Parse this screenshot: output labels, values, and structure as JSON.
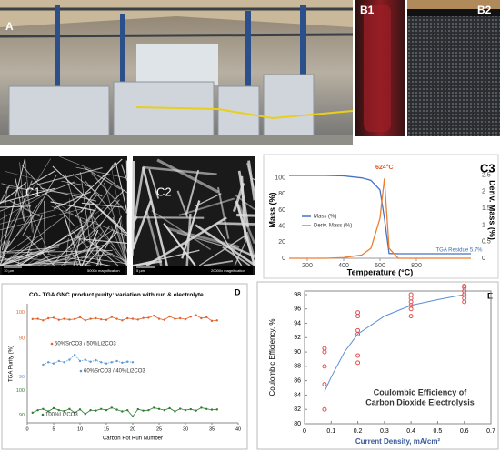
{
  "figure": {
    "labels": {
      "a": "A",
      "b1": "B1",
      "b2": "B2",
      "c1": "C1",
      "c2": "C2",
      "c1_scale": "10 µm",
      "c1_mag": "5000x magnification",
      "c2_scale": "5 µm",
      "c2_mag": "20000x magnification"
    }
  },
  "chart_data": [
    {
      "type": "line",
      "label": "C3",
      "xlabel": "Temperature (°C)",
      "ylabel": "Mass (%)",
      "y2label": "Deriv. Mass (%)",
      "annotations": [
        "624°C",
        "TGA Residue 5.7%"
      ],
      "x": [
        100,
        200,
        300,
        400,
        500,
        550,
        600,
        624,
        650,
        700,
        800,
        900,
        1000,
        1100
      ],
      "xlim": [
        100,
        1100
      ],
      "xticks": [
        200,
        400,
        600,
        800
      ],
      "ylim": [
        0,
        120
      ],
      "yticks": [
        0,
        20,
        40,
        60,
        80,
        100
      ],
      "y2lim": [
        0,
        2.9
      ],
      "y2ticks": [
        0,
        0.5,
        1,
        1.5,
        2,
        2.5
      ],
      "series": [
        {
          "name": "Mass (%)",
          "color": "#4472c4",
          "values": [
            103,
            103,
            103,
            102.5,
            100,
            97,
            85,
            50,
            6,
            5.7,
            5.7,
            5.7,
            5.7,
            5.7
          ]
        },
        {
          "name": "Deriv. Mass (%)",
          "color": "#ed7d31",
          "axis": "y2",
          "values": [
            0,
            0,
            0,
            0.02,
            0.1,
            0.3,
            1.2,
            2.4,
            0.3,
            0,
            0,
            0,
            0,
            0
          ]
        }
      ],
      "legend": "left"
    },
    {
      "type": "line",
      "label": "D",
      "title": "CO₂ TGA GNC product purity: variation with run & electrolyte",
      "xlabel": "Carbon Pot Run Number",
      "ylabel": "TGA Purity (%)",
      "xlim": [
        0,
        40
      ],
      "xticks": [
        0,
        5,
        10,
        15,
        20,
        25,
        30,
        35,
        40
      ],
      "series": [
        {
          "name": "50%SrCO3 / 50%Li2CO3",
          "color": "#e0622a",
          "ylim": [
            88,
            102
          ],
          "yticks": [
            100,
            90
          ],
          "x": [
            1,
            2,
            3,
            4,
            5,
            6,
            7,
            8,
            9,
            10,
            11,
            12,
            13,
            14,
            15,
            16,
            17,
            18,
            19,
            20,
            21,
            22,
            23,
            24,
            25,
            26,
            27,
            28,
            29,
            30,
            31,
            32,
            33,
            34,
            35,
            36
          ],
          "values": [
            97.5,
            97.6,
            97,
            97.8,
            98,
            97.2,
            97.6,
            97.3,
            97.5,
            98.2,
            97,
            97.6,
            97.8,
            97.4,
            97.2,
            98.3,
            97.6,
            97,
            97.8,
            97.6,
            97.3,
            97.9,
            98,
            98.8,
            97.6,
            97.2,
            98.5,
            97.6,
            97.8,
            97.4,
            98.4,
            99,
            97.8,
            98.2,
            96.8,
            97
          ]
        },
        {
          "name": "60%SrCO3 / 40%Li2CO3",
          "color": "#5b9bd5",
          "ylim": [
            88,
            102
          ],
          "yticks": [
            90
          ],
          "x": [
            3,
            4,
            5,
            6,
            7,
            8,
            9,
            10,
            11,
            12,
            13,
            14,
            15,
            16,
            17,
            18,
            19,
            20
          ],
          "values": [
            95,
            96,
            95.5,
            96.5,
            96,
            97,
            99,
            96.5,
            97,
            96.2,
            96.8,
            96,
            95.5,
            96,
            96.5,
            95.8,
            96.2,
            96
          ]
        },
        {
          "name": "100%Li2CO3",
          "color": "#2e7d32",
          "ylim": [
            88,
            102
          ],
          "yticks": [
            100,
            90
          ],
          "x": [
            1,
            2,
            3,
            4,
            5,
            6,
            7,
            8,
            9,
            10,
            11,
            12,
            13,
            14,
            15,
            16,
            17,
            18,
            19,
            20,
            21,
            22,
            23,
            24,
            25,
            26,
            27,
            28,
            29,
            30,
            31,
            32,
            33,
            34,
            35,
            36
          ],
          "values": [
            91,
            92,
            92.5,
            91.5,
            92.8,
            92,
            91.6,
            92.5,
            91,
            92.3,
            90.5,
            92,
            91.8,
            92.5,
            92,
            93,
            92.2,
            91.5,
            92,
            89.5,
            92.4,
            91.8,
            92,
            93,
            92.5,
            92,
            92.8,
            91.5,
            92.6,
            92,
            92.4,
            91.8,
            93,
            92.5,
            92.2,
            92.3
          ]
        }
      ]
    },
    {
      "type": "scatter",
      "label": "E",
      "annotation": [
        "Coulombic Efficiency of",
        "Carbon Dioxide Electrolysis"
      ],
      "xlabel": "Current Density, mA/cm²",
      "ylabel": "Coulombic Efficiency, %",
      "xlim": [
        0,
        0.7
      ],
      "xticks": [
        0,
        0.1,
        0.2,
        0.3,
        0.4,
        0.5,
        0.6,
        0.7
      ],
      "ylim": [
        80,
        98.5
      ],
      "yticks": [
        80,
        82,
        84,
        86,
        88,
        90,
        92,
        94,
        96,
        98
      ],
      "grid": false,
      "series": [
        {
          "type": "scatter",
          "color": "#e05050",
          "x": [
            0.075,
            0.075,
            0.075,
            0.075,
            0.075,
            0.2,
            0.2,
            0.2,
            0.2,
            0.2,
            0.2,
            0.4,
            0.4,
            0.4,
            0.4,
            0.4,
            0.4,
            0.6,
            0.6,
            0.6,
            0.6,
            0.6,
            0.6
          ],
          "values": [
            82,
            85.5,
            88,
            90,
            90.5,
            88.5,
            89.5,
            92.5,
            93,
            95,
            95.5,
            95,
            96,
            96.5,
            97,
            97.5,
            98,
            97,
            97.5,
            98,
            98.5,
            99,
            99.2
          ]
        },
        {
          "type": "line",
          "color": "#5b8fd0",
          "x": [
            0.075,
            0.1,
            0.15,
            0.2,
            0.3,
            0.4,
            0.5,
            0.6
          ],
          "values": [
            84.5,
            86.5,
            90,
            92.5,
            95,
            96.5,
            97.3,
            98
          ]
        }
      ]
    }
  ]
}
